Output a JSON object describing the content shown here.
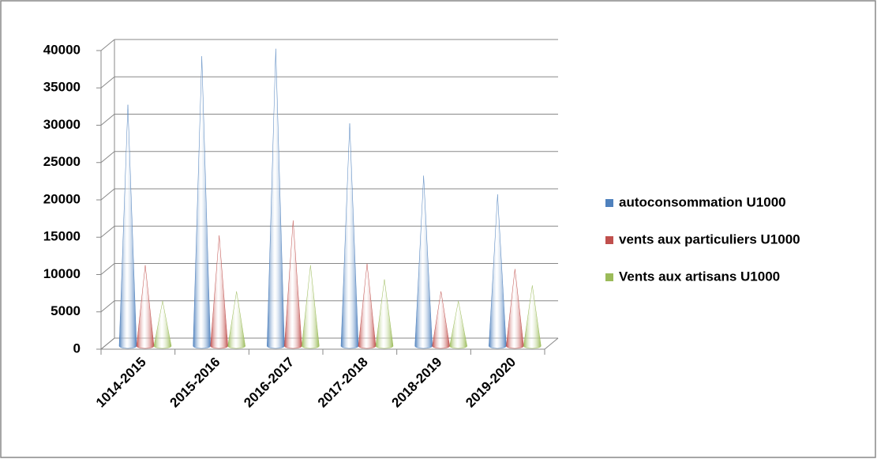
{
  "chart_data": {
    "type": "cone",
    "categories": [
      "1014-2015",
      "2015-2016",
      "2016-2017",
      "2017-2018",
      "2018-2019",
      "2019-2020"
    ],
    "series": [
      {
        "name": "autoconsommation U1000",
        "color": "#4f81bd",
        "values": [
          32000,
          38500,
          39500,
          29500,
          22500,
          20000
        ]
      },
      {
        "name": "vents aux particuliers U1000",
        "color": "#c0504d",
        "values": [
          10500,
          14500,
          16500,
          10700,
          7000,
          10000
        ]
      },
      {
        "name": "Vents aux artisans U1000",
        "color": "#9bbb59",
        "values": [
          5700,
          7000,
          10500,
          8600,
          5700,
          7800
        ]
      }
    ],
    "ylim": [
      0,
      40000
    ],
    "yticks": [
      0,
      5000,
      10000,
      15000,
      20000,
      25000,
      30000,
      35000,
      40000
    ],
    "grid": true,
    "legend": "right"
  }
}
